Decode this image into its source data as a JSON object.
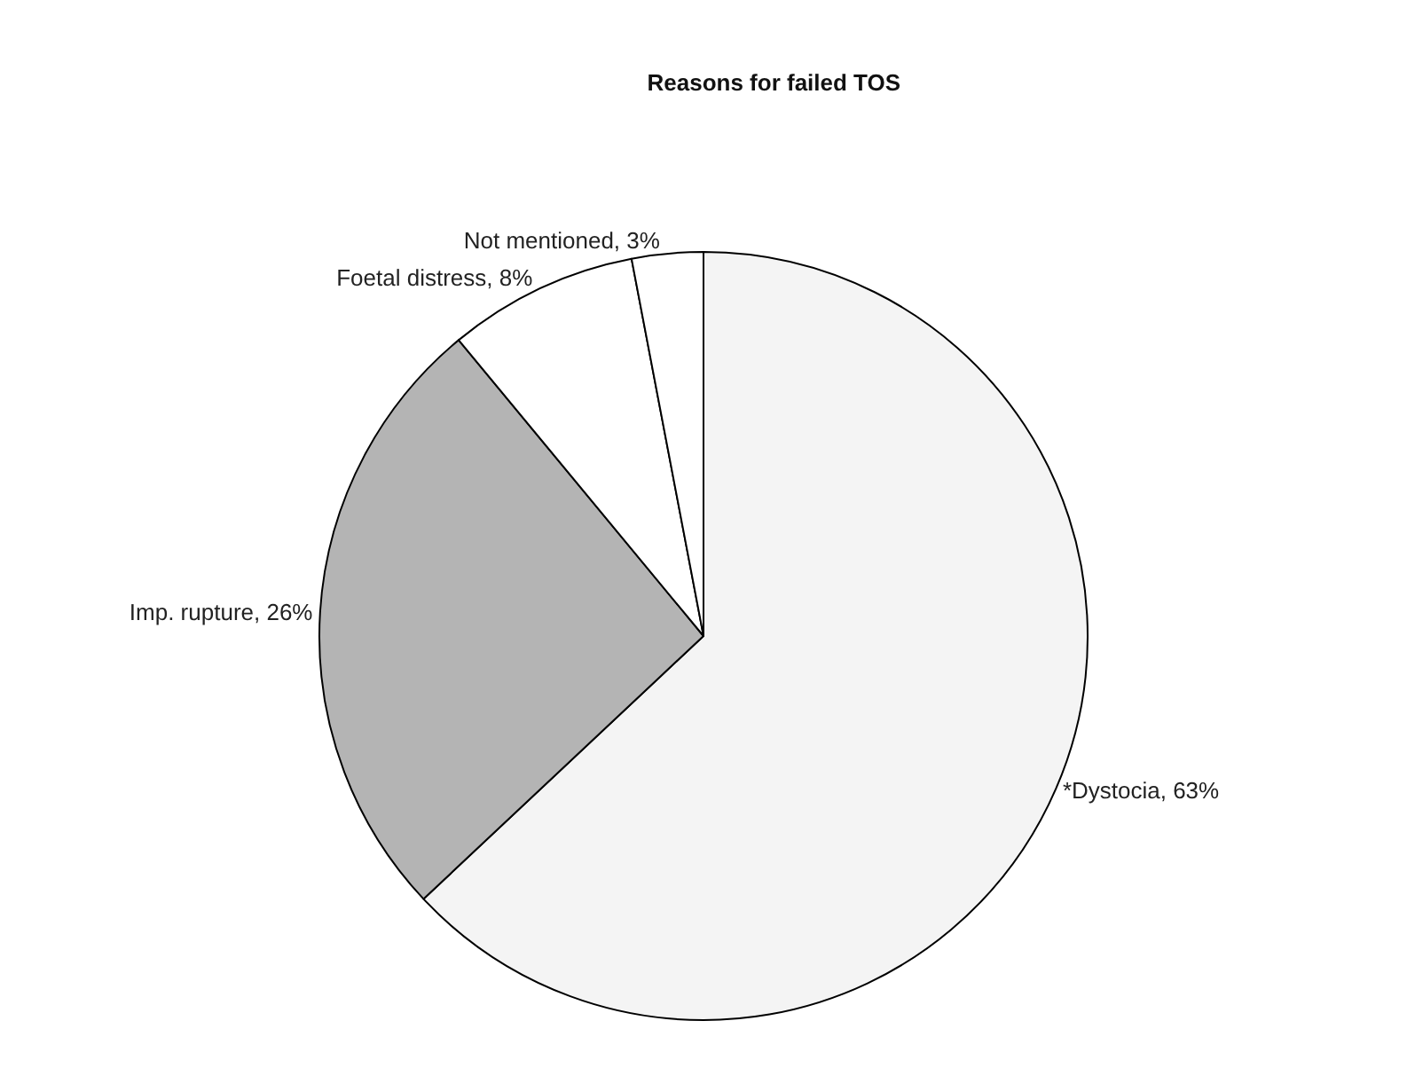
{
  "chart_data": {
    "type": "pie",
    "title": "Reasons for failed TOS",
    "categories": [
      "*Dystocia, 63%",
      "Imp. rupture, 26%",
      "Foetal distress, 8%",
      "Not mentioned, 3%"
    ],
    "values": [
      63,
      26,
      8,
      3
    ],
    "colors": [
      "#f4f4f4",
      "#b4b4b4",
      "#ffffff",
      "#ffffff"
    ],
    "legend": false
  }
}
